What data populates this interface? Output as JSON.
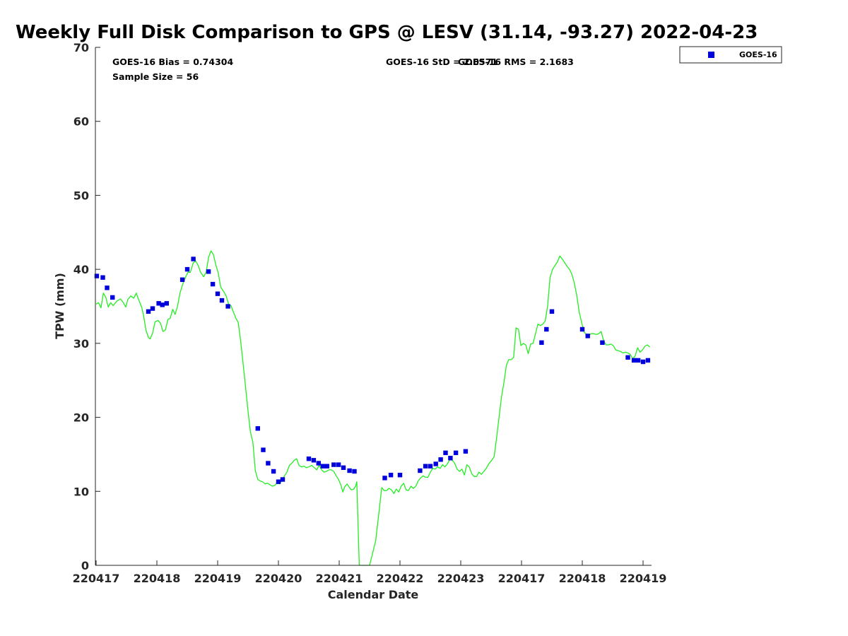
{
  "chart_data": {
    "type": "scatter",
    "title": "Weekly Full Disk Comparison to GPS @ LESV (31.14, -93.27) 2022-04-23",
    "xlabel": "Calendar Date",
    "ylabel": "TPW (mm)",
    "xlim": [
      0,
      9.2
    ],
    "ylim": [
      0,
      70
    ],
    "x_ticks": [
      {
        "x": 0,
        "label": "220417"
      },
      {
        "x": 1,
        "label": "220418"
      },
      {
        "x": 2,
        "label": "220419"
      },
      {
        "x": 3,
        "label": "220420"
      },
      {
        "x": 4,
        "label": "220421"
      },
      {
        "x": 5,
        "label": "220422"
      },
      {
        "x": 6,
        "label": "220423"
      },
      {
        "x": 7,
        "label": "220417"
      },
      {
        "x": 8,
        "label": "220418"
      },
      {
        "x": 9,
        "label": "220419"
      }
    ],
    "y_ticks": [
      0,
      10,
      20,
      30,
      40,
      50,
      60,
      70
    ],
    "grid": false,
    "legend": {
      "placement": "top-right",
      "entries": [
        "GOES-16"
      ]
    },
    "stats": {
      "bias": "GOES-16 Bias = 0.74304",
      "sample_size": "Sample Size = 56",
      "std": "GOES-16 StD = 2.0571",
      "rms": "GOES-16 RMS = 2.1683"
    },
    "colors": {
      "goes": "#0000dd",
      "gps": "#22ee22"
    },
    "series": [
      {
        "name": "GOES-16",
        "marker": "square",
        "points": [
          [
            0.01,
            39.1
          ],
          [
            0.11,
            38.9
          ],
          [
            0.18,
            37.5
          ],
          [
            0.27,
            36.2
          ],
          [
            0.86,
            34.3
          ],
          [
            0.93,
            34.7
          ],
          [
            1.03,
            35.4
          ],
          [
            1.09,
            35.2
          ],
          [
            1.16,
            35.4
          ],
          [
            1.42,
            38.6
          ],
          [
            1.5,
            40.0
          ],
          [
            1.6,
            41.4
          ],
          [
            1.85,
            39.7
          ],
          [
            1.92,
            38.0
          ],
          [
            2.0,
            36.7
          ],
          [
            2.07,
            35.8
          ],
          [
            2.17,
            35.0
          ],
          [
            2.66,
            18.5
          ],
          [
            2.75,
            15.6
          ],
          [
            2.83,
            13.8
          ],
          [
            2.92,
            12.7
          ],
          [
            3.0,
            11.3
          ],
          [
            3.07,
            11.6
          ],
          [
            3.5,
            14.4
          ],
          [
            3.58,
            14.2
          ],
          [
            3.66,
            13.8
          ],
          [
            3.73,
            13.4
          ],
          [
            3.8,
            13.4
          ],
          [
            3.91,
            13.6
          ],
          [
            3.99,
            13.6
          ],
          [
            4.07,
            13.2
          ],
          [
            4.17,
            12.8
          ],
          [
            4.25,
            12.7
          ],
          [
            4.75,
            11.8
          ],
          [
            4.85,
            12.2
          ],
          [
            5.0,
            12.2
          ],
          [
            5.33,
            12.8
          ],
          [
            5.42,
            13.4
          ],
          [
            5.5,
            13.4
          ],
          [
            5.59,
            13.7
          ],
          [
            5.67,
            14.3
          ],
          [
            5.75,
            15.2
          ],
          [
            5.83,
            14.5
          ],
          [
            5.92,
            15.2
          ],
          [
            6.08,
            15.4
          ],
          [
            7.33,
            30.1
          ],
          [
            7.41,
            31.9
          ],
          [
            7.5,
            34.3
          ],
          [
            8.0,
            31.9
          ],
          [
            8.09,
            31.0
          ],
          [
            8.33,
            30.1
          ],
          [
            8.75,
            28.1
          ],
          [
            8.85,
            27.7
          ],
          [
            8.92,
            27.7
          ],
          [
            9.0,
            27.5
          ],
          [
            9.08,
            27.7
          ]
        ]
      },
      {
        "name": "GPS",
        "line": true,
        "points": [
          [
            0.0,
            35.3
          ],
          [
            0.04,
            35.5
          ],
          [
            0.08,
            34.8
          ],
          [
            0.12,
            36.8
          ],
          [
            0.16,
            36.2
          ],
          [
            0.2,
            34.9
          ],
          [
            0.24,
            35.5
          ],
          [
            0.28,
            35.1
          ],
          [
            0.34,
            35.7
          ],
          [
            0.4,
            36.0
          ],
          [
            0.44,
            35.6
          ],
          [
            0.49,
            34.9
          ],
          [
            0.52,
            35.9
          ],
          [
            0.57,
            36.4
          ],
          [
            0.62,
            36.1
          ],
          [
            0.66,
            36.8
          ],
          [
            0.7,
            35.9
          ],
          [
            0.75,
            34.9
          ],
          [
            0.78,
            33.8
          ],
          [
            0.82,
            31.8
          ],
          [
            0.86,
            30.8
          ],
          [
            0.89,
            30.6
          ],
          [
            0.93,
            31.4
          ],
          [
            0.97,
            32.9
          ],
          [
            1.02,
            33.1
          ],
          [
            1.06,
            32.7
          ],
          [
            1.1,
            31.6
          ],
          [
            1.14,
            31.8
          ],
          [
            1.18,
            33.2
          ],
          [
            1.22,
            33.4
          ],
          [
            1.26,
            34.6
          ],
          [
            1.3,
            33.9
          ],
          [
            1.34,
            35.0
          ],
          [
            1.38,
            36.8
          ],
          [
            1.43,
            38.1
          ],
          [
            1.47,
            38.9
          ],
          [
            1.51,
            39.6
          ],
          [
            1.55,
            39.6
          ],
          [
            1.6,
            40.9
          ],
          [
            1.64,
            41.1
          ],
          [
            1.68,
            40.5
          ],
          [
            1.72,
            39.6
          ],
          [
            1.77,
            39.0
          ],
          [
            1.81,
            39.6
          ],
          [
            1.85,
            41.6
          ],
          [
            1.89,
            42.5
          ],
          [
            1.93,
            42.0
          ],
          [
            1.97,
            40.6
          ],
          [
            2.01,
            39.5
          ],
          [
            2.05,
            37.6
          ],
          [
            2.1,
            37.0
          ],
          [
            2.14,
            36.4
          ],
          [
            2.18,
            35.3
          ],
          [
            2.22,
            35.1
          ],
          [
            2.26,
            34.2
          ],
          [
            2.3,
            33.4
          ],
          [
            2.34,
            32.8
          ],
          [
            2.38,
            30.2
          ],
          [
            2.42,
            27.2
          ],
          [
            2.46,
            24.0
          ],
          [
            2.5,
            20.8
          ],
          [
            2.54,
            18.0
          ],
          [
            2.58,
            16.6
          ],
          [
            2.62,
            12.8
          ],
          [
            2.66,
            11.6
          ],
          [
            2.7,
            11.4
          ],
          [
            2.74,
            11.3
          ],
          [
            2.78,
            11.0
          ],
          [
            2.82,
            11.1
          ],
          [
            2.86,
            10.9
          ],
          [
            2.9,
            10.7
          ],
          [
            2.94,
            10.8
          ],
          [
            2.98,
            11.2
          ],
          [
            3.02,
            11.0
          ],
          [
            3.06,
            11.5
          ],
          [
            3.1,
            12.1
          ],
          [
            3.14,
            12.6
          ],
          [
            3.18,
            13.5
          ],
          [
            3.22,
            13.8
          ],
          [
            3.26,
            14.2
          ],
          [
            3.3,
            14.4
          ],
          [
            3.34,
            13.5
          ],
          [
            3.38,
            13.3
          ],
          [
            3.42,
            13.4
          ],
          [
            3.46,
            13.2
          ],
          [
            3.5,
            13.3
          ],
          [
            3.55,
            13.5
          ],
          [
            3.59,
            13.2
          ],
          [
            3.63,
            12.9
          ],
          [
            3.67,
            13.5
          ],
          [
            3.71,
            12.9
          ],
          [
            3.75,
            12.6
          ],
          [
            3.79,
            12.7
          ],
          [
            3.83,
            12.9
          ],
          [
            3.87,
            12.9
          ],
          [
            3.91,
            12.7
          ],
          [
            3.95,
            12.1
          ],
          [
            3.99,
            11.6
          ],
          [
            4.03,
            10.8
          ],
          [
            4.06,
            9.9
          ],
          [
            4.09,
            10.6
          ],
          [
            4.13,
            11.0
          ],
          [
            4.16,
            10.6
          ],
          [
            4.2,
            10.2
          ],
          [
            4.24,
            10.3
          ],
          [
            4.27,
            10.7
          ],
          [
            4.29,
            11.3
          ],
          [
            4.33,
            0.0
          ],
          [
            4.5,
            0.0
          ],
          [
            4.6,
            3.3
          ],
          [
            4.66,
            7.6
          ],
          [
            4.7,
            10.5
          ],
          [
            4.74,
            10.1
          ],
          [
            4.78,
            10.1
          ],
          [
            4.82,
            10.4
          ],
          [
            4.86,
            10.2
          ],
          [
            4.9,
            9.7
          ],
          [
            4.94,
            10.3
          ],
          [
            4.98,
            9.9
          ],
          [
            5.02,
            10.7
          ],
          [
            5.06,
            11.1
          ],
          [
            5.1,
            10.2
          ],
          [
            5.14,
            10.1
          ],
          [
            5.18,
            10.7
          ],
          [
            5.22,
            10.4
          ],
          [
            5.26,
            10.7
          ],
          [
            5.3,
            11.4
          ],
          [
            5.34,
            11.8
          ],
          [
            5.38,
            12.1
          ],
          [
            5.42,
            11.9
          ],
          [
            5.46,
            11.9
          ],
          [
            5.5,
            12.6
          ],
          [
            5.54,
            13.1
          ],
          [
            5.58,
            13.0
          ],
          [
            5.62,
            13.3
          ],
          [
            5.66,
            13.1
          ],
          [
            5.7,
            13.6
          ],
          [
            5.74,
            13.3
          ],
          [
            5.78,
            13.7
          ],
          [
            5.82,
            14.3
          ],
          [
            5.86,
            14.2
          ],
          [
            5.9,
            13.8
          ],
          [
            5.94,
            13.0
          ],
          [
            5.98,
            12.7
          ],
          [
            6.02,
            13.0
          ],
          [
            6.06,
            12.2
          ],
          [
            6.1,
            13.6
          ],
          [
            6.14,
            13.3
          ],
          [
            6.18,
            12.4
          ],
          [
            6.22,
            12.0
          ],
          [
            6.26,
            12.0
          ],
          [
            6.3,
            12.6
          ],
          [
            6.34,
            12.3
          ],
          [
            6.38,
            12.7
          ],
          [
            6.42,
            13.1
          ],
          [
            6.46,
            13.7
          ],
          [
            6.51,
            14.2
          ],
          [
            6.55,
            14.7
          ],
          [
            6.59,
            17.2
          ],
          [
            6.63,
            20.0
          ],
          [
            6.67,
            22.7
          ],
          [
            6.71,
            24.7
          ],
          [
            6.75,
            27.0
          ],
          [
            6.79,
            27.8
          ],
          [
            6.83,
            27.8
          ],
          [
            6.87,
            28.1
          ],
          [
            6.91,
            32.1
          ],
          [
            6.95,
            31.9
          ],
          [
            6.99,
            29.7
          ],
          [
            7.03,
            30.0
          ],
          [
            7.07,
            29.8
          ],
          [
            7.11,
            28.6
          ],
          [
            7.15,
            29.9
          ],
          [
            7.19,
            30.0
          ],
          [
            7.23,
            31.3
          ],
          [
            7.27,
            32.6
          ],
          [
            7.31,
            32.4
          ],
          [
            7.35,
            32.6
          ],
          [
            7.39,
            33.0
          ],
          [
            7.43,
            35.1
          ],
          [
            7.47,
            38.9
          ],
          [
            7.51,
            40.0
          ],
          [
            7.55,
            40.5
          ],
          [
            7.59,
            41.0
          ],
          [
            7.63,
            41.8
          ],
          [
            7.67,
            41.4
          ],
          [
            7.71,
            40.9
          ],
          [
            7.75,
            40.4
          ],
          [
            7.79,
            40.0
          ],
          [
            7.83,
            39.3
          ],
          [
            7.87,
            38.1
          ],
          [
            7.91,
            36.4
          ],
          [
            7.95,
            34.2
          ],
          [
            7.99,
            32.8
          ],
          [
            8.03,
            31.5
          ],
          [
            8.07,
            31.2
          ],
          [
            8.11,
            31.1
          ],
          [
            8.15,
            31.3
          ],
          [
            8.19,
            31.3
          ],
          [
            8.23,
            31.2
          ],
          [
            8.27,
            31.3
          ],
          [
            8.31,
            31.6
          ],
          [
            8.35,
            30.4
          ],
          [
            8.39,
            29.8
          ],
          [
            8.43,
            29.8
          ],
          [
            8.47,
            29.9
          ],
          [
            8.51,
            29.7
          ],
          [
            8.55,
            29.1
          ],
          [
            8.59,
            29.0
          ],
          [
            8.63,
            28.9
          ],
          [
            8.67,
            28.7
          ],
          [
            8.71,
            28.8
          ],
          [
            8.75,
            28.7
          ],
          [
            8.79,
            28.5
          ],
          [
            8.83,
            27.9
          ],
          [
            8.87,
            28.3
          ],
          [
            8.91,
            29.4
          ],
          [
            8.95,
            28.8
          ],
          [
            8.99,
            29.1
          ],
          [
            9.03,
            29.6
          ],
          [
            9.07,
            29.8
          ],
          [
            9.11,
            29.5
          ]
        ]
      }
    ]
  }
}
